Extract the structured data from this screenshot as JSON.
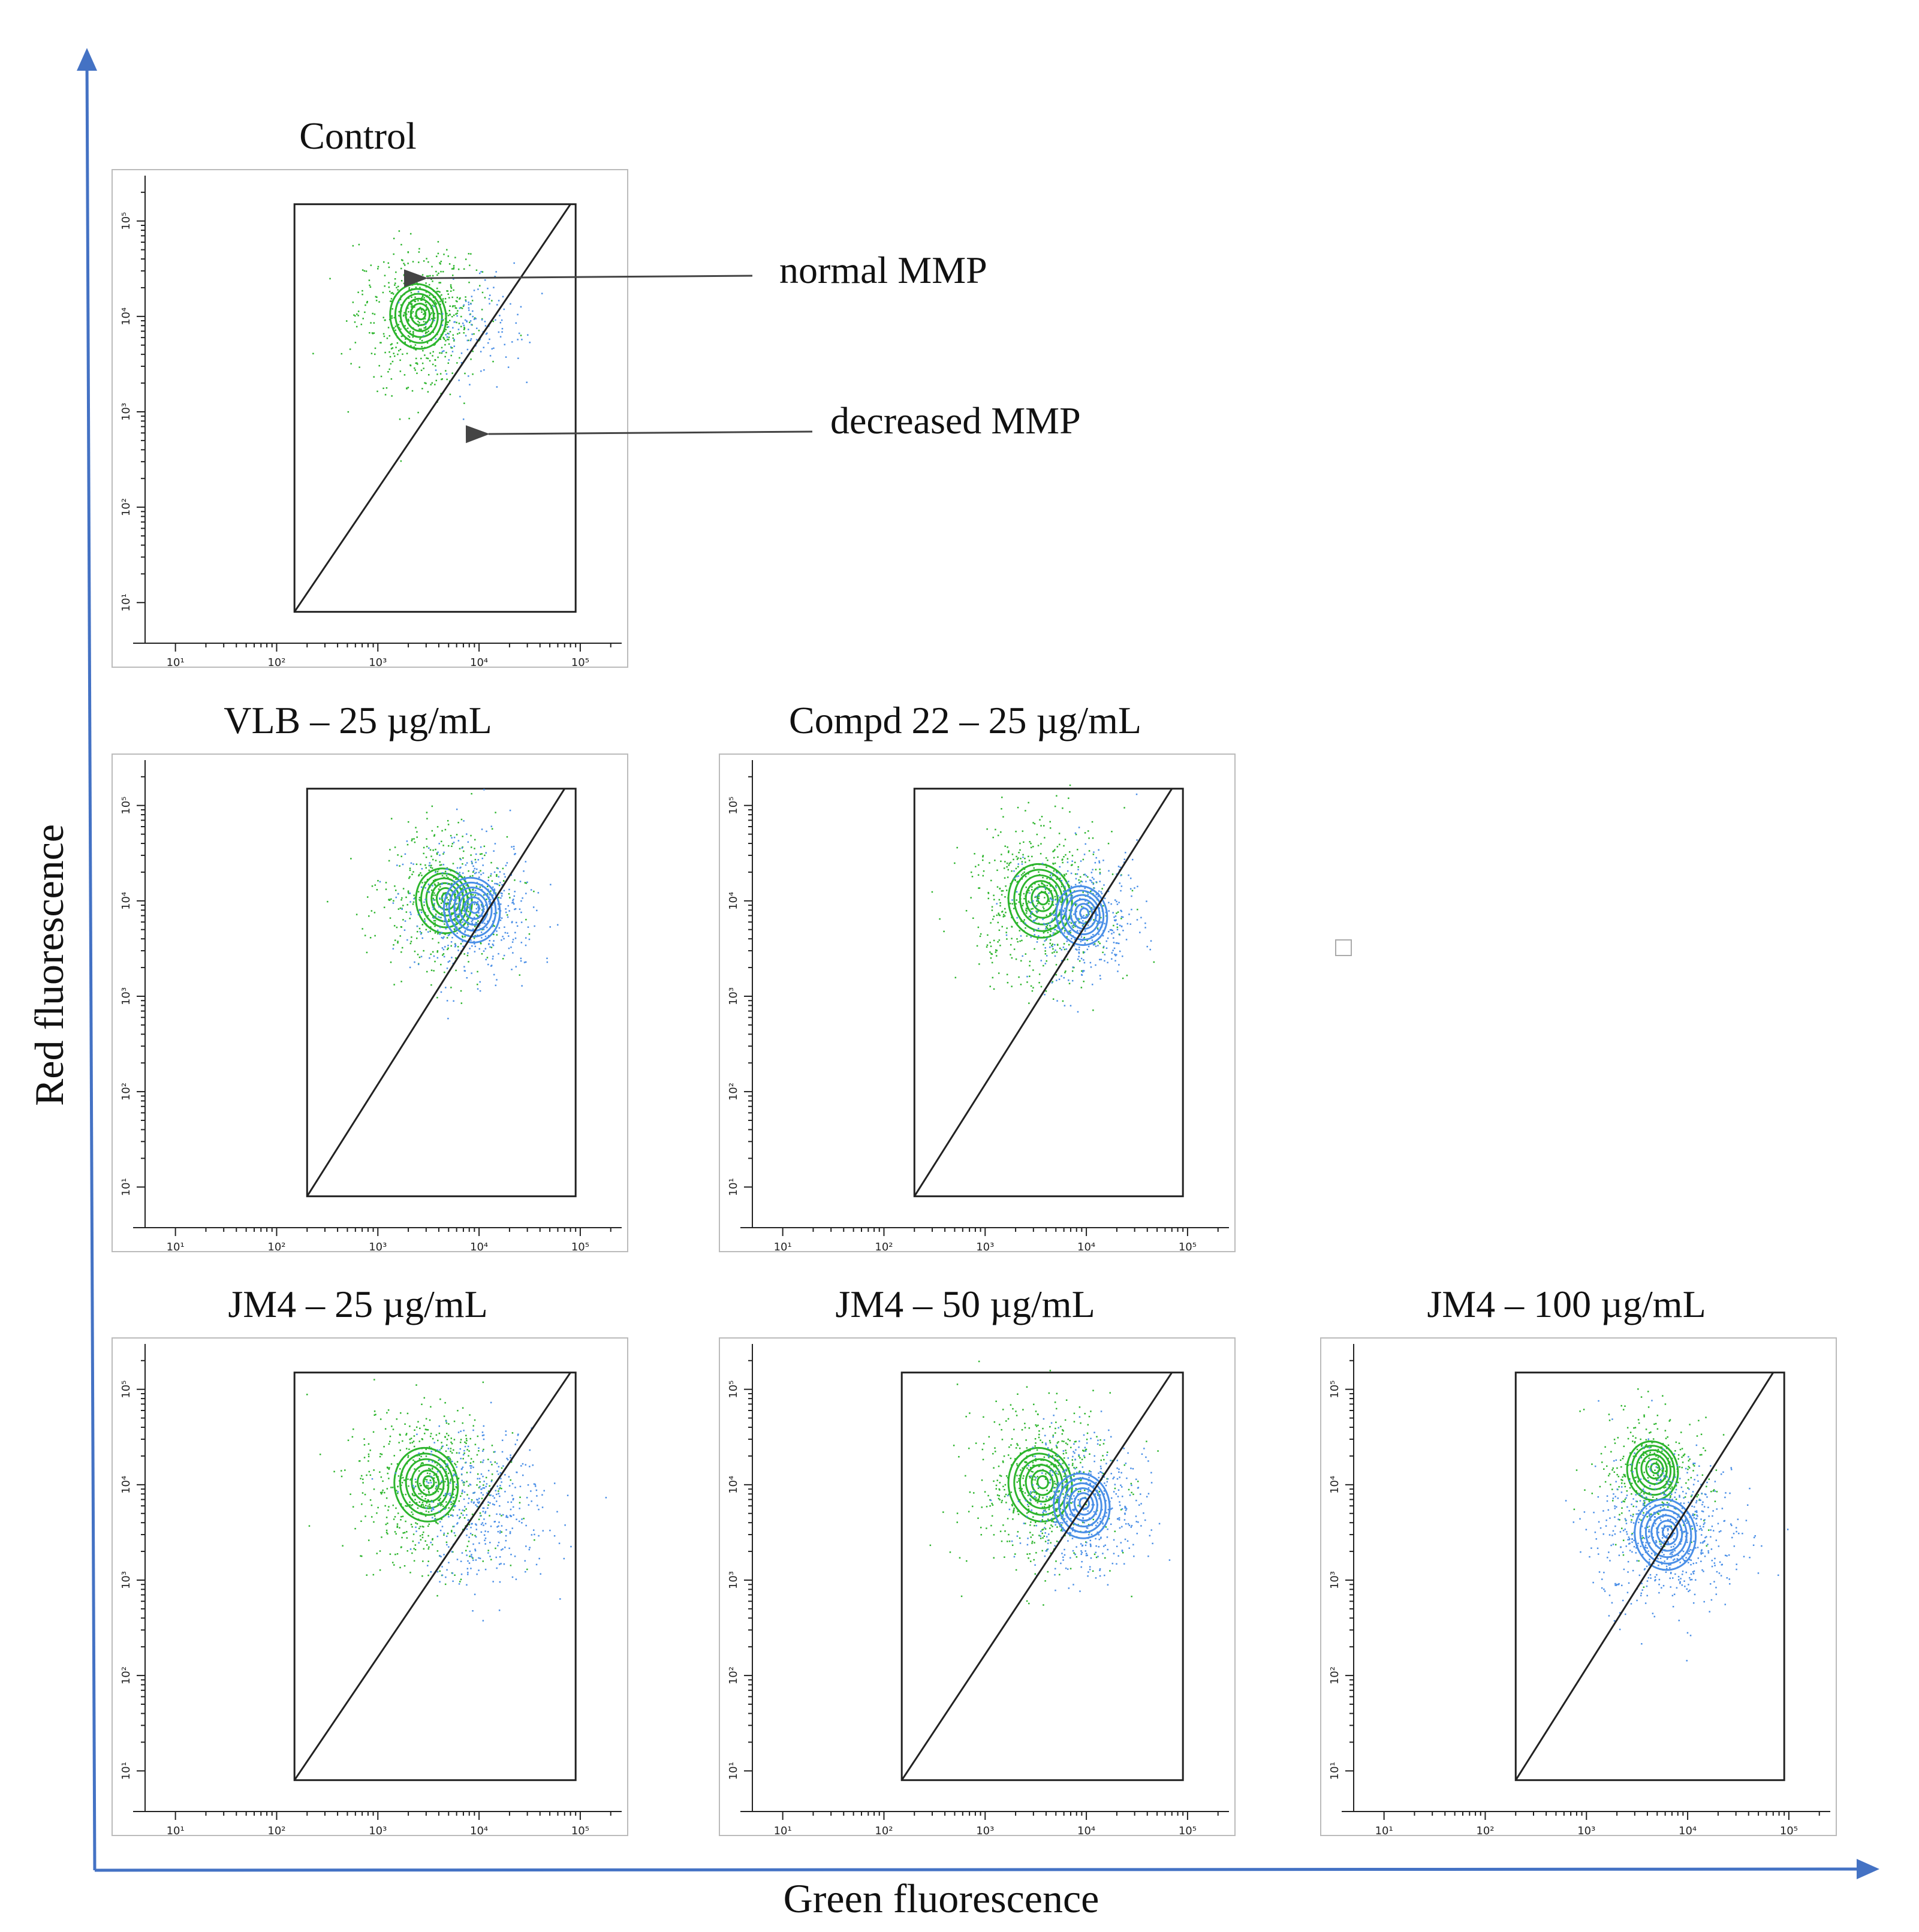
{
  "figure": {
    "axis_color": "#4472C4",
    "x_axis_label": "Green fluorescence",
    "y_axis_label": "Red fluorescence",
    "annotations": [
      "normal MMP",
      "decreased MMP"
    ]
  },
  "colors": {
    "green_population": "#2DB52D",
    "blue_population": "#4A8FE7",
    "frame": "#222222",
    "arrow": "#444444"
  },
  "chart_data": [
    {
      "type": "scatter",
      "title": "Control",
      "xscale": "log",
      "yscale": "log",
      "x_ticks": [
        "10¹",
        "10²",
        "10³",
        "10⁴",
        "10⁵"
      ],
      "y_ticks": [
        "10¹",
        "10²",
        "10³",
        "10⁴",
        "10⁵"
      ],
      "gate": {
        "x": [
          150,
          90000
        ],
        "y": [
          8,
          150000
        ],
        "diagonal_from": [
          150,
          8
        ],
        "diagonal_to": [
          80000,
          150000
        ]
      },
      "series": [
        {
          "color": "#2DB52D",
          "center": [
            2500,
            10000
          ],
          "spread_log": 0.22,
          "count": 550,
          "contour": true
        },
        {
          "color": "#4A8FE7",
          "center": [
            9000,
            8000
          ],
          "spread_log": 0.18,
          "count": 130,
          "contour": false
        }
      ]
    },
    {
      "type": "scatter",
      "title": "VLB – 25 µg/mL",
      "xscale": "log",
      "yscale": "log",
      "x_ticks": [
        "10¹",
        "10²",
        "10³",
        "10⁴",
        "10⁵"
      ],
      "y_ticks": [
        "10¹",
        "10²",
        "10³",
        "10⁴",
        "10⁵"
      ],
      "gate": {
        "x": [
          200,
          90000
        ],
        "y": [
          8,
          150000
        ],
        "diagonal_from": [
          200,
          8
        ],
        "diagonal_to": [
          70000,
          150000
        ]
      },
      "series": [
        {
          "color": "#2DB52D",
          "center": [
            4500,
            10000
          ],
          "spread_log": 0.22,
          "count": 450,
          "contour": true
        },
        {
          "color": "#4A8FE7",
          "center": [
            8500,
            8000
          ],
          "spread_log": 0.22,
          "count": 450,
          "contour": true
        }
      ]
    },
    {
      "type": "scatter",
      "title": "Compd 22 – 25 µg/mL",
      "xscale": "log",
      "yscale": "log",
      "x_ticks": [
        "10¹",
        "10²",
        "10³",
        "10⁴",
        "10⁵"
      ],
      "y_ticks": [
        "10¹",
        "10²",
        "10³",
        "10⁴",
        "10⁵"
      ],
      "gate": {
        "x": [
          200,
          90000
        ],
        "y": [
          8,
          150000
        ],
        "diagonal_from": [
          200,
          8
        ],
        "diagonal_to": [
          70000,
          150000
        ]
      },
      "series": [
        {
          "color": "#2DB52D",
          "center": [
            3500,
            10000
          ],
          "spread_log": 0.25,
          "count": 550,
          "contour": true
        },
        {
          "color": "#4A8FE7",
          "center": [
            9000,
            7000
          ],
          "spread_log": 0.2,
          "count": 400,
          "contour": true
        }
      ]
    },
    {
      "type": "scatter",
      "title": "JM4 – 25 µg/mL",
      "xscale": "log",
      "yscale": "log",
      "x_ticks": [
        "10¹",
        "10²",
        "10³",
        "10⁴",
        "10⁵"
      ],
      "y_ticks": [
        "10¹",
        "10²",
        "10³",
        "10⁴",
        "10⁵"
      ],
      "gate": {
        "x": [
          150,
          90000
        ],
        "y": [
          8,
          150000
        ],
        "diagonal_from": [
          150,
          8
        ],
        "diagonal_to": [
          80000,
          150000
        ]
      },
      "series": [
        {
          "color": "#2DB52D",
          "center": [
            3000,
            10000
          ],
          "spread_log": 0.25,
          "count": 600,
          "contour": true
        },
        {
          "color": "#4A8FE7",
          "center": [
            10000,
            6000
          ],
          "spread_log": 0.25,
          "count": 400,
          "contour": false
        }
      ]
    },
    {
      "type": "scatter",
      "title": "JM4 – 50 µg/mL",
      "xscale": "log",
      "yscale": "log",
      "x_ticks": [
        "10¹",
        "10²",
        "10³",
        "10⁴",
        "10⁵"
      ],
      "y_ticks": [
        "10¹",
        "10²",
        "10³",
        "10⁴",
        "10⁵"
      ],
      "gate": {
        "x": [
          150,
          90000
        ],
        "y": [
          8,
          150000
        ],
        "diagonal_from": [
          150,
          8
        ],
        "diagonal_to": [
          70000,
          150000
        ]
      },
      "series": [
        {
          "color": "#2DB52D",
          "center": [
            3500,
            10000
          ],
          "spread_log": 0.25,
          "count": 550,
          "contour": true
        },
        {
          "color": "#4A8FE7",
          "center": [
            9000,
            6000
          ],
          "spread_log": 0.22,
          "count": 450,
          "contour": true
        }
      ]
    },
    {
      "type": "scatter",
      "title": "JM4 – 100 µg/mL",
      "xscale": "log",
      "yscale": "log",
      "x_ticks": [
        "10¹",
        "10²",
        "10³",
        "10⁴",
        "10⁵"
      ],
      "y_ticks": [
        "10¹",
        "10²",
        "10³",
        "10⁴",
        "10⁵"
      ],
      "gate": {
        "x": [
          200,
          90000
        ],
        "y": [
          8,
          150000
        ],
        "diagonal_from": [
          200,
          8
        ],
        "diagonal_to": [
          70000,
          150000
        ]
      },
      "series": [
        {
          "color": "#2DB52D",
          "center": [
            4500,
            14000
          ],
          "spread_log": 0.2,
          "count": 350,
          "contour": true
        },
        {
          "color": "#4A8FE7",
          "center": [
            6000,
            3000
          ],
          "spread_log": 0.24,
          "count": 650,
          "contour": true
        }
      ]
    }
  ]
}
